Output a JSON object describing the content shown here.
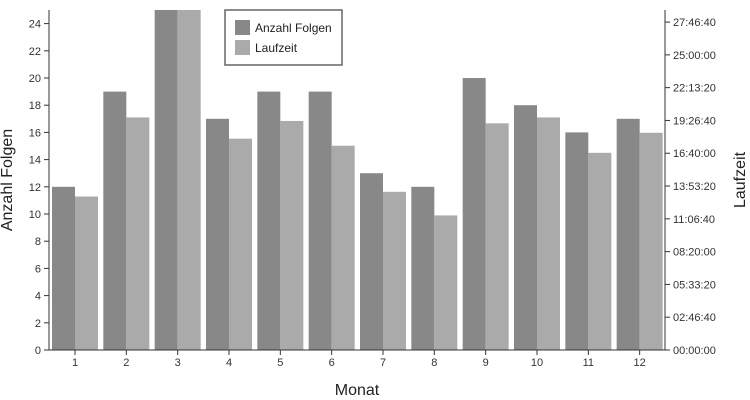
{
  "chart_data": {
    "type": "bar",
    "xlabel": "Monat",
    "ylabel": "Anzahl Folgen",
    "y2label": "Laufzeit",
    "categories": [
      "1",
      "2",
      "3",
      "4",
      "5",
      "6",
      "7",
      "8",
      "9",
      "10",
      "11",
      "12"
    ],
    "ylim": [
      0,
      25
    ],
    "yticks": [
      "0",
      "2",
      "4",
      "6",
      "8",
      "10",
      "12",
      "14",
      "16",
      "18",
      "20",
      "22",
      "24"
    ],
    "y2lim_hours": [
      0,
      28.8
    ],
    "y2ticks": [
      "00:00:00",
      "02:46:40",
      "05:33:20",
      "08:20:00",
      "11:06:40",
      "13:53:20",
      "16:40:00",
      "19:26:40",
      "22:13:20",
      "25:00:00",
      "27:46:40"
    ],
    "legend_position": "top-left",
    "grid": false,
    "series": [
      {
        "name": "Anzahl Folgen",
        "axis": "left",
        "color": "#888888",
        "values": [
          12,
          19,
          25,
          17,
          19,
          19,
          13,
          12,
          20,
          18,
          16,
          17
        ]
      },
      {
        "name": "Laufzeit",
        "axis": "right",
        "unit": "hours",
        "color": "#aaaaaa",
        "values": [
          13.0,
          19.7,
          28.8,
          17.9,
          19.4,
          17.3,
          13.4,
          11.4,
          19.2,
          19.7,
          16.7,
          18.4
        ]
      }
    ]
  }
}
